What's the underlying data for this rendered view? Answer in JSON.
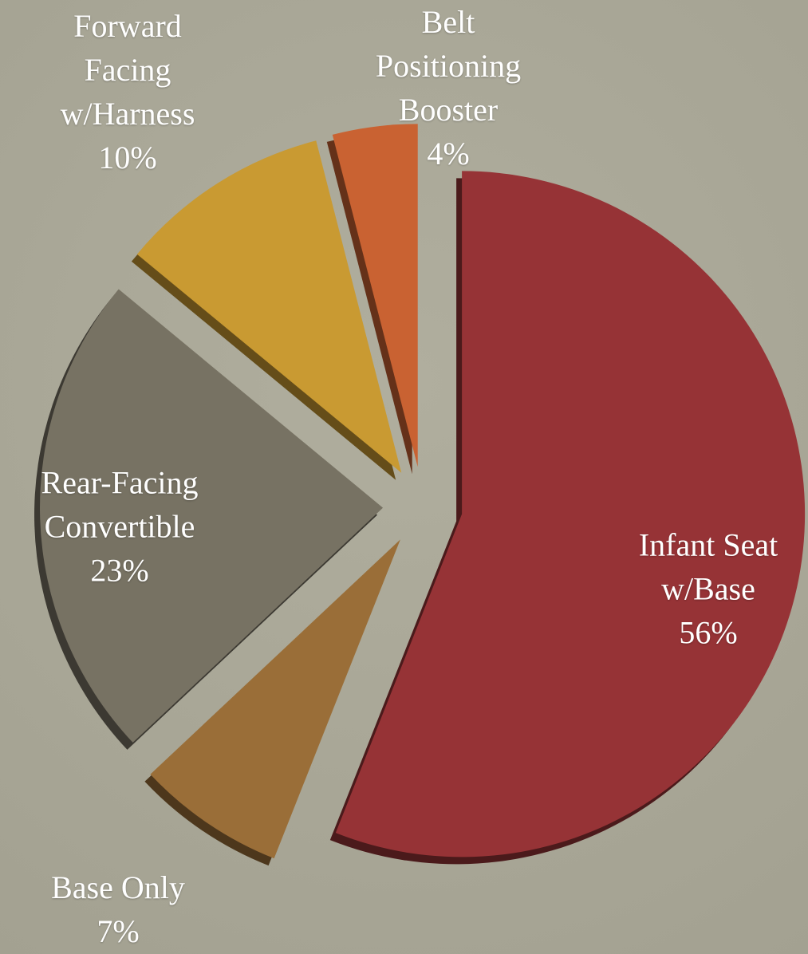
{
  "chart_data": {
    "type": "pie",
    "categories": [
      "Infant Seat w/Base",
      "Base Only",
      "Rear-Facing Convertible",
      "Forward Facing w/Harness",
      "Belt Positioning Booster"
    ],
    "values": [
      56,
      7,
      23,
      10,
      4
    ],
    "value_labels": [
      "56%",
      "7%",
      "23%",
      "10%",
      "4%"
    ],
    "colors": [
      "#963336",
      "#9a6e38",
      "#777263",
      "#c99a32",
      "#c96232"
    ]
  }
}
